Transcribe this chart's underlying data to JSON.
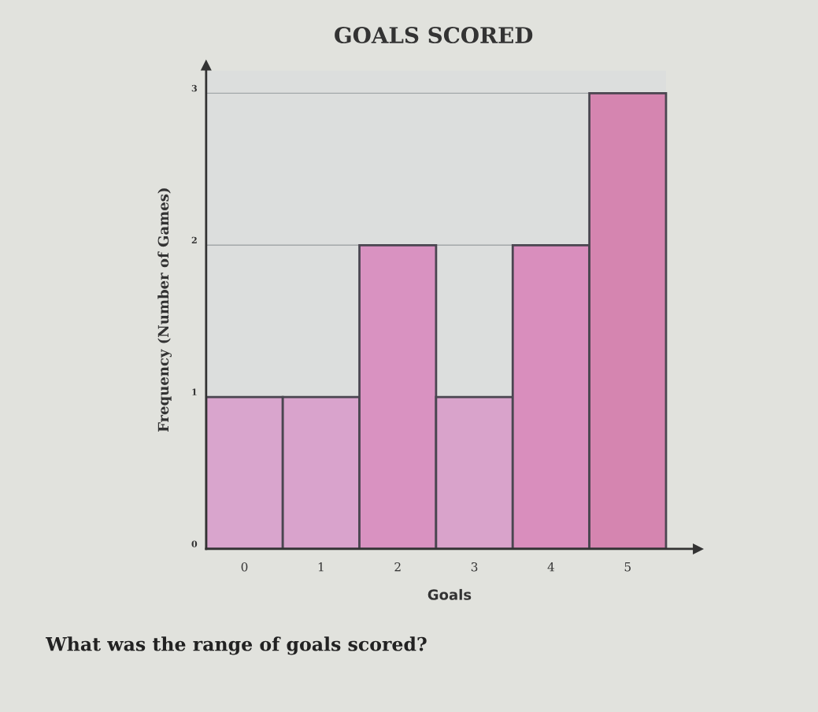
{
  "chart_data": {
    "type": "bar",
    "title": "GOALS SCORED",
    "xlabel": "Goals",
    "ylabel": "Frequency (Number of Games)",
    "categories": [
      "0",
      "1",
      "2",
      "3",
      "4",
      "5"
    ],
    "values": [
      1,
      1,
      2,
      1,
      2,
      3
    ],
    "colors": [
      "#d9a5cd",
      "#d9a3cc",
      "#d992c1",
      "#d9a3cb",
      "#d98ebd",
      "#d585b0"
    ],
    "ylim": [
      0,
      3.15
    ],
    "yticks": [
      0,
      1,
      2,
      3
    ],
    "grid": "y",
    "annotations": [
      "What was the range of goals scored?"
    ]
  }
}
